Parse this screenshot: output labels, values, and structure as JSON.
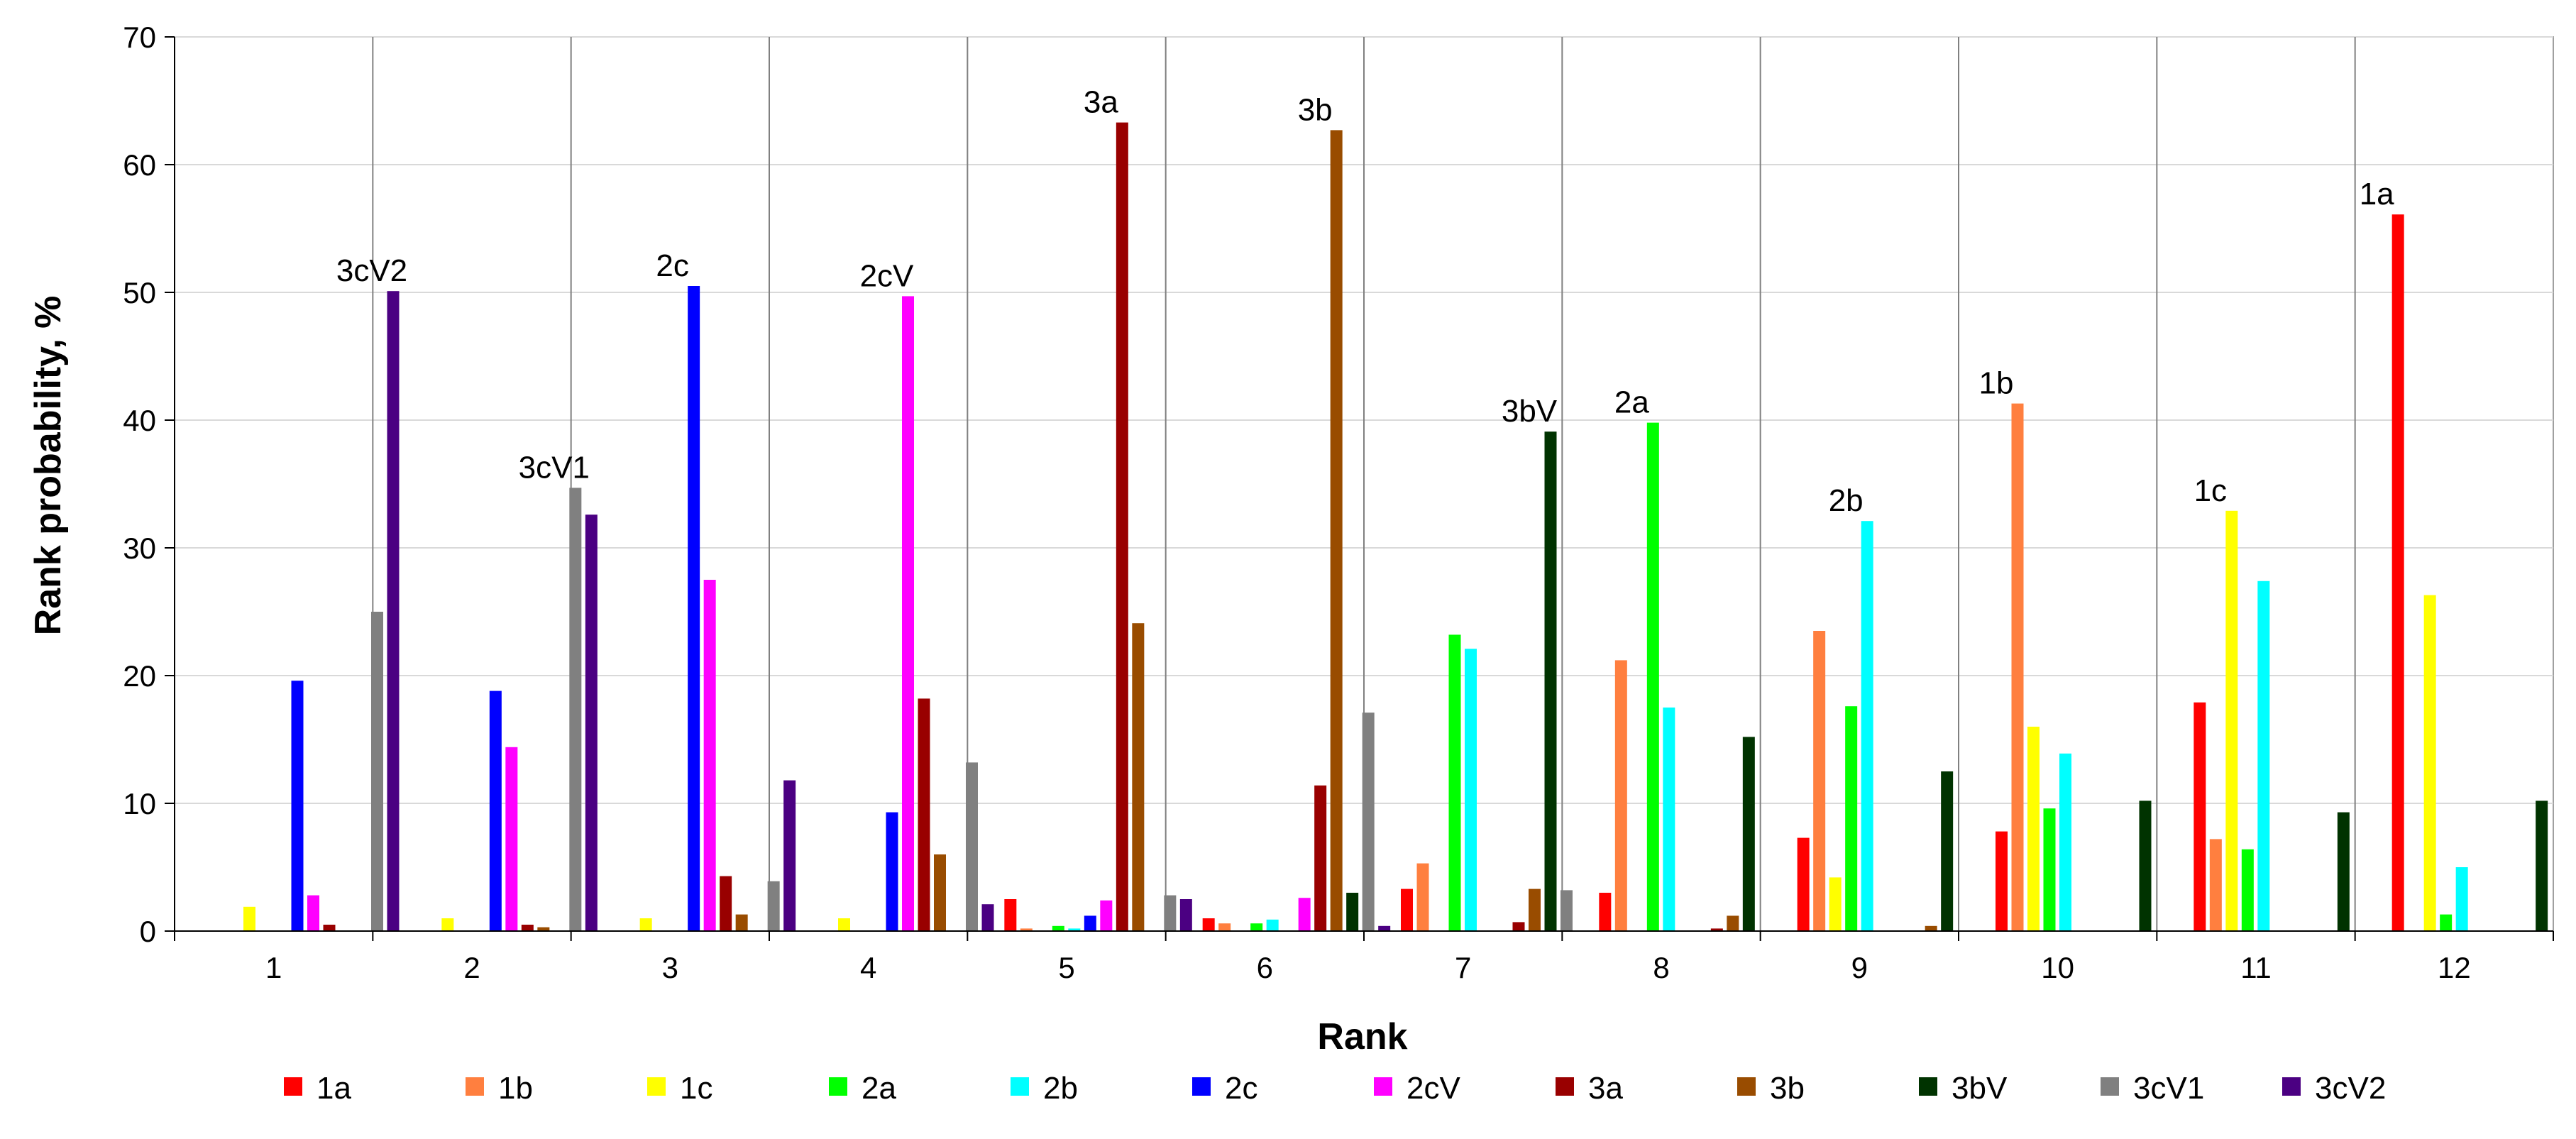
{
  "chart_data": {
    "type": "bar",
    "xlabel": "Rank",
    "ylabel": "Rank probability, %",
    "ylim": [
      0,
      70
    ],
    "yticks": [
      0,
      10,
      20,
      30,
      40,
      50,
      60,
      70
    ],
    "categories": [
      "1",
      "2",
      "3",
      "4",
      "5",
      "6",
      "7",
      "8",
      "9",
      "10",
      "11",
      "12"
    ],
    "grid": "horizontal",
    "legend_position": "bottom",
    "series": [
      {
        "name": "1a",
        "color": "#ff0000",
        "values": [
          0,
          0,
          0,
          0,
          2.5,
          1.0,
          3.3,
          3.0,
          7.3,
          7.8,
          17.9,
          56.1
        ]
      },
      {
        "name": "1b",
        "color": "#ff7f3f",
        "values": [
          0,
          0,
          0,
          0,
          0.2,
          0.6,
          5.3,
          21.2,
          23.5,
          41.3,
          7.2,
          0
        ]
      },
      {
        "name": "1c",
        "color": "#ffff00",
        "values": [
          1.9,
          1.0,
          1.0,
          1.0,
          0,
          0,
          0,
          0,
          4.2,
          16.0,
          32.9,
          26.3
        ]
      },
      {
        "name": "2a",
        "color": "#00ff00",
        "values": [
          0,
          0,
          0,
          0,
          0.4,
          0.6,
          23.2,
          39.8,
          17.6,
          9.6,
          6.4,
          1.3
        ]
      },
      {
        "name": "2b",
        "color": "#00ffff",
        "values": [
          0,
          0,
          0,
          0,
          0.2,
          0.9,
          22.1,
          17.5,
          32.1,
          13.9,
          27.4,
          5.0
        ]
      },
      {
        "name": "2c",
        "color": "#0000ff",
        "values": [
          19.6,
          18.8,
          50.5,
          9.3,
          1.2,
          0,
          0,
          0,
          0,
          0,
          0,
          0
        ]
      },
      {
        "name": "2cV",
        "color": "#ff00ff",
        "values": [
          2.8,
          14.4,
          27.5,
          49.7,
          2.4,
          2.6,
          0,
          0,
          0,
          0,
          0,
          0
        ]
      },
      {
        "name": "3a",
        "color": "#990000",
        "values": [
          0.5,
          0.5,
          4.3,
          18.2,
          63.3,
          11.4,
          0.7,
          0.2,
          0,
          0,
          0,
          0
        ]
      },
      {
        "name": "3b",
        "color": "#994c00",
        "values": [
          0,
          0.3,
          1.3,
          6.0,
          24.1,
          62.7,
          3.3,
          1.2,
          0.4,
          0,
          0,
          0
        ]
      },
      {
        "name": "3bV",
        "color": "#003300",
        "values": [
          0,
          0,
          0,
          0,
          0,
          3.0,
          39.1,
          15.2,
          12.5,
          10.2,
          9.3,
          10.2
        ]
      },
      {
        "name": "3cV1",
        "color": "#808080",
        "values": [
          25.0,
          34.7,
          3.9,
          13.2,
          2.8,
          17.1,
          3.2,
          0,
          0,
          0,
          0,
          0
        ]
      },
      {
        "name": "3cV2",
        "color": "#4b0082",
        "values": [
          50.1,
          32.6,
          11.8,
          2.1,
          2.5,
          0.4,
          0,
          0,
          0,
          0,
          0,
          0
        ]
      }
    ],
    "annotations": [
      {
        "text": "3cV2",
        "category": "1",
        "y": 50.1
      },
      {
        "text": "3cV1",
        "category": "2",
        "y": 34.7
      },
      {
        "text": "2c",
        "category": "3",
        "y": 50.5
      },
      {
        "text": "2cV",
        "category": "4",
        "y": 49.7
      },
      {
        "text": "3a",
        "category": "5",
        "y": 63.3
      },
      {
        "text": "3b",
        "category": "6",
        "y": 62.7
      },
      {
        "text": "3bV",
        "category": "7",
        "y": 39.1
      },
      {
        "text": "2a",
        "category": "8",
        "y": 39.8
      },
      {
        "text": "2b",
        "category": "9",
        "y": 32.1
      },
      {
        "text": "1b",
        "category": "10",
        "y": 41.3
      },
      {
        "text": "1c",
        "category": "11",
        "y": 32.9
      },
      {
        "text": "1a",
        "category": "12",
        "y": 56.1
      }
    ]
  }
}
